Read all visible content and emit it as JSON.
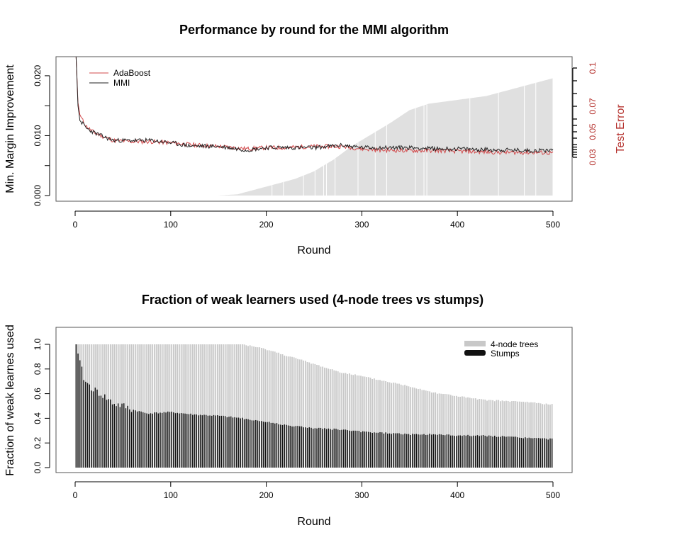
{
  "colors": {
    "adaboost": "#d2494b",
    "mmi": "#222222",
    "test_error_fill": "#e0e0e0",
    "trees_fill": "#c8c8c8",
    "stumps_fill": "#111111",
    "right_axis": "#b5322e"
  },
  "chart_data": [
    {
      "type": "line",
      "title": "Performance by round for the MMI algorithm",
      "xlabel": "Round",
      "ylabel": "Min. Margin Improvement",
      "y2label": "Test Error",
      "xlim": [
        0,
        500
      ],
      "ylim": [
        0,
        0.022
      ],
      "y2lim": [
        0.0,
        0.1
      ],
      "xticks": [
        0,
        100,
        200,
        300,
        400,
        500
      ],
      "yticks": [
        0.0,
        0.01,
        0.02
      ],
      "ytick_labels": [
        "0.000",
        "0.010",
        "0.020"
      ],
      "y2ticks": [
        0.03,
        0.05,
        0.07,
        0.1
      ],
      "y2tick_labels": [
        "0.03",
        "0.05",
        "0.07",
        "0.1"
      ],
      "legend_position": "top-left",
      "series": [
        {
          "name": "AdaBoost",
          "x": [
            1,
            3,
            5,
            8,
            12,
            20,
            30,
            40,
            60,
            80,
            100,
            120,
            150,
            180,
            200,
            220,
            250,
            280,
            300,
            320,
            350,
            380,
            400,
            420,
            450,
            480,
            500
          ],
          "y": [
            0.0232,
            0.0155,
            0.0135,
            0.0125,
            0.0115,
            0.0105,
            0.0098,
            0.0092,
            0.009,
            0.009,
            0.0088,
            0.0085,
            0.0082,
            0.0078,
            0.008,
            0.008,
            0.0082,
            0.0082,
            0.0078,
            0.0076,
            0.0075,
            0.0075,
            0.0074,
            0.0073,
            0.0072,
            0.0072,
            0.0071
          ]
        },
        {
          "name": "MMI",
          "x": [
            1,
            3,
            5,
            8,
            12,
            20,
            30,
            40,
            60,
            80,
            100,
            120,
            150,
            180,
            200,
            220,
            250,
            280,
            300,
            320,
            350,
            380,
            400,
            420,
            450,
            480,
            500
          ],
          "y": [
            0.0232,
            0.015,
            0.0125,
            0.012,
            0.0112,
            0.0105,
            0.0098,
            0.0092,
            0.0092,
            0.0092,
            0.0088,
            0.0083,
            0.0082,
            0.0076,
            0.008,
            0.008,
            0.008,
            0.0084,
            0.008,
            0.008,
            0.008,
            0.0078,
            0.0078,
            0.0077,
            0.0076,
            0.0075,
            0.0076
          ]
        },
        {
          "name": "Test Error",
          "axis": "right",
          "x": [
            150,
            170,
            190,
            210,
            230,
            250,
            270,
            290,
            310,
            330,
            350,
            370,
            390,
            410,
            430,
            450,
            470,
            490,
            500
          ],
          "y": [
            0.0,
            0.001,
            0.005,
            0.009,
            0.013,
            0.019,
            0.028,
            0.039,
            0.048,
            0.057,
            0.067,
            0.072,
            0.074,
            0.076,
            0.078,
            0.082,
            0.086,
            0.09,
            0.092
          ]
        }
      ]
    },
    {
      "type": "bar",
      "stacked": false,
      "title": "Fraction of weak learners used (4-node trees vs stumps)",
      "xlabel": "Round",
      "ylabel": "Fraction of weak learnes used",
      "xlim": [
        0,
        500
      ],
      "ylim": [
        0,
        1.1
      ],
      "xticks": [
        0,
        100,
        200,
        300,
        400,
        500
      ],
      "yticks": [
        0.0,
        0.2,
        0.4,
        0.6,
        0.8,
        1.0
      ],
      "ytick_labels": [
        "0.0",
        "0.2",
        "0.4",
        "0.6",
        "0.8",
        "1.0"
      ],
      "legend_position": "top-right",
      "series": [
        {
          "name": "4-node trees",
          "x": [
            1,
            175,
            200,
            225,
            250,
            275,
            300,
            325,
            350,
            375,
            400,
            425,
            450,
            475,
            500
          ],
          "values": [
            1.0,
            1.0,
            0.96,
            0.9,
            0.84,
            0.78,
            0.74,
            0.7,
            0.66,
            0.61,
            0.58,
            0.55,
            0.54,
            0.53,
            0.51
          ]
        },
        {
          "name": "Stumps",
          "x": [
            1,
            5,
            10,
            20,
            30,
            40,
            50,
            60,
            75,
            100,
            125,
            150,
            175,
            200,
            225,
            250,
            275,
            300,
            325,
            350,
            375,
            400,
            425,
            450,
            475,
            500
          ],
          "values": [
            1.0,
            0.85,
            0.7,
            0.63,
            0.58,
            0.52,
            0.5,
            0.47,
            0.44,
            0.45,
            0.43,
            0.42,
            0.4,
            0.37,
            0.34,
            0.32,
            0.31,
            0.29,
            0.28,
            0.27,
            0.27,
            0.26,
            0.26,
            0.25,
            0.24,
            0.23
          ]
        }
      ]
    }
  ]
}
